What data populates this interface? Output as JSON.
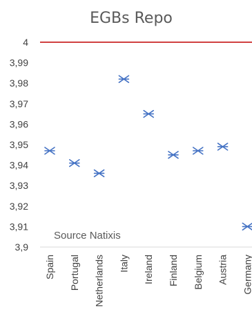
{
  "chart_data": {
    "type": "scatter",
    "title": "EGBs Repo",
    "xlabel": "",
    "ylabel": "",
    "categories": [
      "Spain",
      "Portugal",
      "Netherlands",
      "Italy",
      "Ireland",
      "Finland",
      "Belgium",
      "Austria",
      "Germany"
    ],
    "series": [
      {
        "values": [
          3.947,
          3.941,
          3.936,
          3.982,
          3.965,
          3.945,
          3.947,
          3.949,
          3.91
        ]
      }
    ],
    "ylim": [
      3.9,
      4.0
    ],
    "yticks": [
      "4",
      "3,99",
      "3,98",
      "3,97",
      "3,96",
      "3,95",
      "3,94",
      "3,93",
      "3,92",
      "3,91",
      "3,9"
    ],
    "reference_line": 4.0,
    "annotation": "Source Natixis",
    "grid": false,
    "legend": "none",
    "colors": {
      "marker": "#4472c4",
      "reference": "#c00000",
      "axis": "#d9d9d9"
    },
    "marker": "asterisk"
  }
}
